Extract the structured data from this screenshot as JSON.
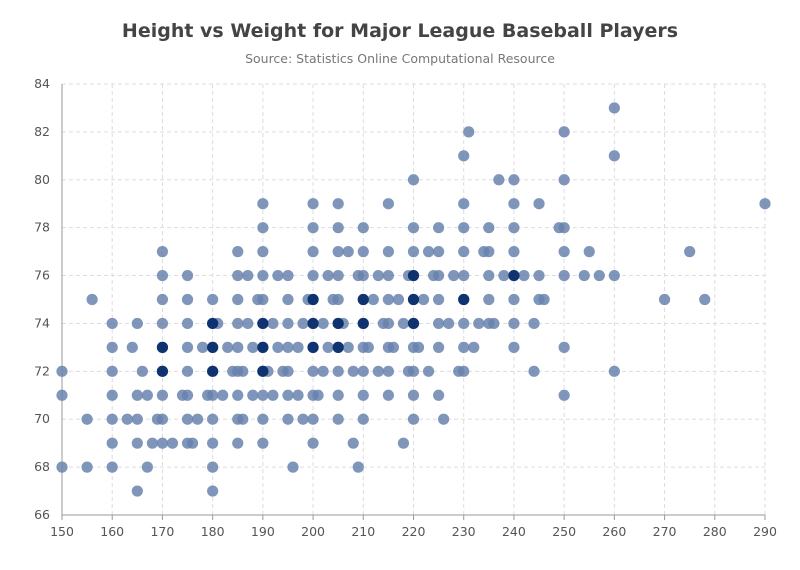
{
  "chart_data": {
    "type": "scatter",
    "title": "Height vs Weight for Major League Baseball Players",
    "subtitle": "Source: Statistics Online Computational Resource",
    "xlabel": "",
    "ylabel": "",
    "xlim": [
      150,
      290
    ],
    "ylim": [
      66,
      84
    ],
    "xticks": [
      "150",
      "160",
      "170",
      "180",
      "190",
      "200",
      "210",
      "220",
      "230",
      "240",
      "250",
      "260",
      "270",
      "280",
      "290"
    ],
    "yticks": [
      "66",
      "68",
      "70",
      "72",
      "74",
      "76",
      "78",
      "80",
      "82",
      "84"
    ],
    "grid": true,
    "legend": "none",
    "colors": {
      "light": "#6882ad",
      "dark": "#0a2d6b",
      "grid": "#dddddd",
      "axis": "#999999"
    },
    "series": [
      {
        "points": [
          [
            150,
            68
          ],
          [
            150,
            71
          ],
          [
            150,
            72
          ],
          [
            155,
            68
          ],
          [
            155,
            70
          ],
          [
            156,
            75
          ],
          [
            160,
            68
          ],
          [
            160,
            69
          ],
          [
            160,
            70
          ],
          [
            160,
            71
          ],
          [
            160,
            72
          ],
          [
            160,
            73
          ],
          [
            160,
            74
          ],
          [
            163,
            70
          ],
          [
            164,
            73
          ],
          [
            165,
            67
          ],
          [
            165,
            69
          ],
          [
            165,
            70
          ],
          [
            165,
            71
          ],
          [
            165,
            74
          ],
          [
            166,
            72
          ],
          [
            167,
            68
          ],
          [
            167,
            71
          ],
          [
            168,
            69
          ],
          [
            169,
            70
          ],
          [
            170,
            69
          ],
          [
            170,
            70
          ],
          [
            170,
            71
          ],
          [
            170,
            72
          ],
          [
            170,
            73
          ],
          [
            170,
            74
          ],
          [
            170,
            75
          ],
          [
            170,
            76
          ],
          [
            170,
            77
          ],
          [
            172,
            69
          ],
          [
            174,
            71
          ],
          [
            175,
            69
          ],
          [
            175,
            70
          ],
          [
            175,
            71
          ],
          [
            175,
            72
          ],
          [
            175,
            73
          ],
          [
            175,
            74
          ],
          [
            175,
            75
          ],
          [
            175,
            76
          ],
          [
            176,
            69
          ],
          [
            177,
            70
          ],
          [
            178,
            73
          ],
          [
            179,
            71
          ],
          [
            180,
            67
          ],
          [
            180,
            68
          ],
          [
            180,
            69
          ],
          [
            180,
            70
          ],
          [
            180,
            71
          ],
          [
            180,
            72
          ],
          [
            180,
            73
          ],
          [
            180,
            74
          ],
          [
            180,
            75
          ],
          [
            181,
            74
          ],
          [
            182,
            71
          ],
          [
            183,
            73
          ],
          [
            184,
            72
          ],
          [
            185,
            69
          ],
          [
            185,
            70
          ],
          [
            185,
            71
          ],
          [
            185,
            72
          ],
          [
            185,
            73
          ],
          [
            185,
            74
          ],
          [
            185,
            75
          ],
          [
            185,
            76
          ],
          [
            185,
            77
          ],
          [
            186,
            70
          ],
          [
            186,
            72
          ],
          [
            187,
            74
          ],
          [
            187,
            76
          ],
          [
            188,
            71
          ],
          [
            188,
            73
          ],
          [
            189,
            75
          ],
          [
            190,
            69
          ],
          [
            190,
            70
          ],
          [
            190,
            71
          ],
          [
            190,
            72
          ],
          [
            190,
            73
          ],
          [
            190,
            74
          ],
          [
            190,
            75
          ],
          [
            190,
            76
          ],
          [
            190,
            77
          ],
          [
            190,
            78
          ],
          [
            190,
            79
          ],
          [
            191,
            72
          ],
          [
            192,
            71
          ],
          [
            192,
            74
          ],
          [
            193,
            73
          ],
          [
            193,
            76
          ],
          [
            194,
            72
          ],
          [
            195,
            70
          ],
          [
            195,
            71
          ],
          [
            195,
            72
          ],
          [
            195,
            73
          ],
          [
            195,
            74
          ],
          [
            195,
            75
          ],
          [
            195,
            76
          ],
          [
            196,
            68
          ],
          [
            197,
            71
          ],
          [
            197,
            73
          ],
          [
            198,
            70
          ],
          [
            198,
            74
          ],
          [
            199,
            75
          ],
          [
            200,
            69
          ],
          [
            200,
            70
          ],
          [
            200,
            71
          ],
          [
            200,
            72
          ],
          [
            200,
            73
          ],
          [
            200,
            74
          ],
          [
            200,
            75
          ],
          [
            200,
            76
          ],
          [
            200,
            77
          ],
          [
            200,
            78
          ],
          [
            200,
            79
          ],
          [
            201,
            71
          ],
          [
            202,
            72
          ],
          [
            202,
            74
          ],
          [
            203,
            73
          ],
          [
            203,
            76
          ],
          [
            204,
            75
          ],
          [
            205,
            70
          ],
          [
            205,
            71
          ],
          [
            205,
            72
          ],
          [
            205,
            73
          ],
          [
            205,
            74
          ],
          [
            205,
            75
          ],
          [
            205,
            76
          ],
          [
            205,
            77
          ],
          [
            205,
            78
          ],
          [
            205,
            79
          ],
          [
            206,
            74
          ],
          [
            207,
            73
          ],
          [
            207,
            77
          ],
          [
            208,
            69
          ],
          [
            208,
            72
          ],
          [
            209,
            68
          ],
          [
            209,
            76
          ],
          [
            210,
            70
          ],
          [
            210,
            71
          ],
          [
            210,
            72
          ],
          [
            210,
            73
          ],
          [
            210,
            74
          ],
          [
            210,
            75
          ],
          [
            210,
            76
          ],
          [
            210,
            77
          ],
          [
            210,
            78
          ],
          [
            211,
            73
          ],
          [
            212,
            75
          ],
          [
            213,
            72
          ],
          [
            213,
            76
          ],
          [
            214,
            74
          ],
          [
            215,
            71
          ],
          [
            215,
            72
          ],
          [
            215,
            73
          ],
          [
            215,
            74
          ],
          [
            215,
            75
          ],
          [
            215,
            76
          ],
          [
            215,
            77
          ],
          [
            215,
            79
          ],
          [
            216,
            73
          ],
          [
            217,
            75
          ],
          [
            218,
            69
          ],
          [
            218,
            74
          ],
          [
            219,
            72
          ],
          [
            219,
            76
          ],
          [
            220,
            70
          ],
          [
            220,
            71
          ],
          [
            220,
            72
          ],
          [
            220,
            73
          ],
          [
            220,
            74
          ],
          [
            220,
            75
          ],
          [
            220,
            76
          ],
          [
            220,
            77
          ],
          [
            220,
            78
          ],
          [
            220,
            80
          ],
          [
            221,
            73
          ],
          [
            222,
            75
          ],
          [
            223,
            72
          ],
          [
            223,
            77
          ],
          [
            224,
            76
          ],
          [
            225,
            71
          ],
          [
            225,
            73
          ],
          [
            225,
            74
          ],
          [
            225,
            75
          ],
          [
            225,
            76
          ],
          [
            225,
            77
          ],
          [
            225,
            78
          ],
          [
            226,
            70
          ],
          [
            227,
            74
          ],
          [
            228,
            76
          ],
          [
            229,
            72
          ],
          [
            230,
            72
          ],
          [
            230,
            73
          ],
          [
            230,
            74
          ],
          [
            230,
            75
          ],
          [
            230,
            76
          ],
          [
            230,
            77
          ],
          [
            230,
            78
          ],
          [
            230,
            79
          ],
          [
            230,
            81
          ],
          [
            231,
            82
          ],
          [
            232,
            73
          ],
          [
            233,
            74
          ],
          [
            234,
            77
          ],
          [
            235,
            74
          ],
          [
            235,
            75
          ],
          [
            235,
            76
          ],
          [
            235,
            77
          ],
          [
            235,
            78
          ],
          [
            236,
            74
          ],
          [
            237,
            80
          ],
          [
            238,
            76
          ],
          [
            240,
            73
          ],
          [
            240,
            74
          ],
          [
            240,
            75
          ],
          [
            240,
            76
          ],
          [
            240,
            77
          ],
          [
            240,
            78
          ],
          [
            240,
            79
          ],
          [
            240,
            80
          ],
          [
            242,
            76
          ],
          [
            244,
            72
          ],
          [
            244,
            74
          ],
          [
            245,
            75
          ],
          [
            245,
            76
          ],
          [
            245,
            79
          ],
          [
            246,
            75
          ],
          [
            249,
            78
          ],
          [
            250,
            71
          ],
          [
            250,
            73
          ],
          [
            250,
            76
          ],
          [
            250,
            77
          ],
          [
            250,
            78
          ],
          [
            250,
            80
          ],
          [
            250,
            82
          ],
          [
            254,
            76
          ],
          [
            255,
            77
          ],
          [
            257,
            76
          ],
          [
            260,
            72
          ],
          [
            260,
            76
          ],
          [
            260,
            81
          ],
          [
            260,
            83
          ],
          [
            270,
            75
          ],
          [
            275,
            77
          ],
          [
            278,
            75
          ],
          [
            290,
            79
          ]
        ],
        "dense": [
          [
            170,
            73
          ],
          [
            170,
            72
          ],
          [
            180,
            72
          ],
          [
            180,
            73
          ],
          [
            180,
            74
          ],
          [
            190,
            73
          ],
          [
            190,
            74
          ],
          [
            190,
            72
          ],
          [
            200,
            74
          ],
          [
            200,
            75
          ],
          [
            200,
            73
          ],
          [
            205,
            73
          ],
          [
            205,
            74
          ],
          [
            210,
            74
          ],
          [
            210,
            75
          ],
          [
            220,
            74
          ],
          [
            220,
            75
          ],
          [
            220,
            76
          ],
          [
            230,
            75
          ],
          [
            240,
            76
          ]
        ]
      }
    ]
  }
}
